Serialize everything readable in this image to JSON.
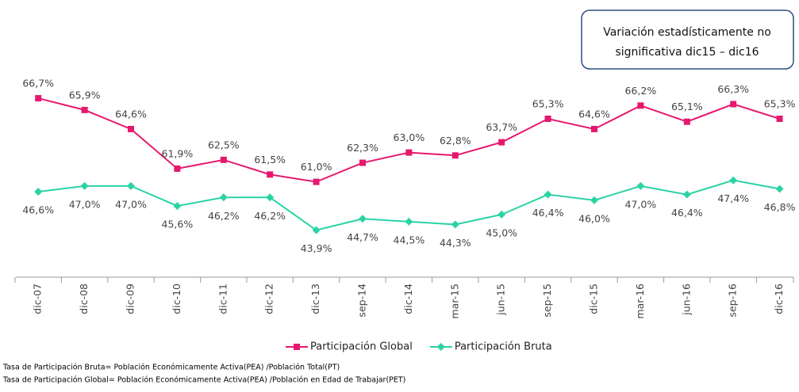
{
  "chart_data": {
    "type": "line",
    "annotation": [
      "Variación estadísticamente no",
      "significativa dic15 – dic16"
    ],
    "categories": [
      "dic-07",
      "dic-08",
      "dic-09",
      "dic-10",
      "dic-11",
      "dic-12",
      "dic-13",
      "sep-14",
      "dic-14",
      "mar-15",
      "jun-15",
      "sep-15",
      "dic-15",
      "mar-16",
      "jun-16",
      "sep-16",
      "dic-16"
    ],
    "series": [
      {
        "name": "Participación Global",
        "color": "#e6186e",
        "marker": "square",
        "values": [
          66.7,
          65.9,
          64.6,
          61.9,
          62.5,
          61.5,
          61.0,
          62.3,
          63.0,
          62.8,
          63.7,
          65.3,
          64.6,
          66.2,
          65.1,
          66.3,
          65.3
        ],
        "value_labels": [
          "66,7%",
          "65,9%",
          "64,6%",
          "61,9%",
          "62,5%",
          "61,5%",
          "61,0%",
          "62,3%",
          "63,0%",
          "62,8%",
          "63,7%",
          "65,3%",
          "64,6%",
          "66,2%",
          "65,1%",
          "66,3%",
          "65,3%"
        ]
      },
      {
        "name": "Participación Bruta",
        "color": "#2ad3a5",
        "marker": "diamond",
        "axis": "y2",
        "values": [
          46.6,
          47.0,
          47.0,
          45.6,
          46.2,
          46.2,
          43.9,
          44.7,
          44.5,
          44.3,
          45.0,
          46.4,
          46.0,
          47.0,
          46.4,
          47.4,
          46.8
        ],
        "value_labels": [
          "46,6%",
          "47,0%",
          "47,0%",
          "45,6%",
          "46,2%",
          "46,2%",
          "43,9%",
          "44,7%",
          "44,5%",
          "44,3%",
          "45,0%",
          "46,4%",
          "46,0%",
          "47,0%",
          "46,4%",
          "47,4%",
          "46,8%"
        ]
      }
    ],
    "ylim": [
      54.5,
      68
    ],
    "y2lim": [
      40.6,
      54.5
    ],
    "legend": "bottom",
    "footnotes": [
      "Tasa de Participación Bruta= Población Económicamente Activa(PEA) /Población Total(PT)",
      "Tasa de Participación Global= Población Económicamente Activa(PEA) /Población en Edad de Trabajar(PET)"
    ]
  }
}
